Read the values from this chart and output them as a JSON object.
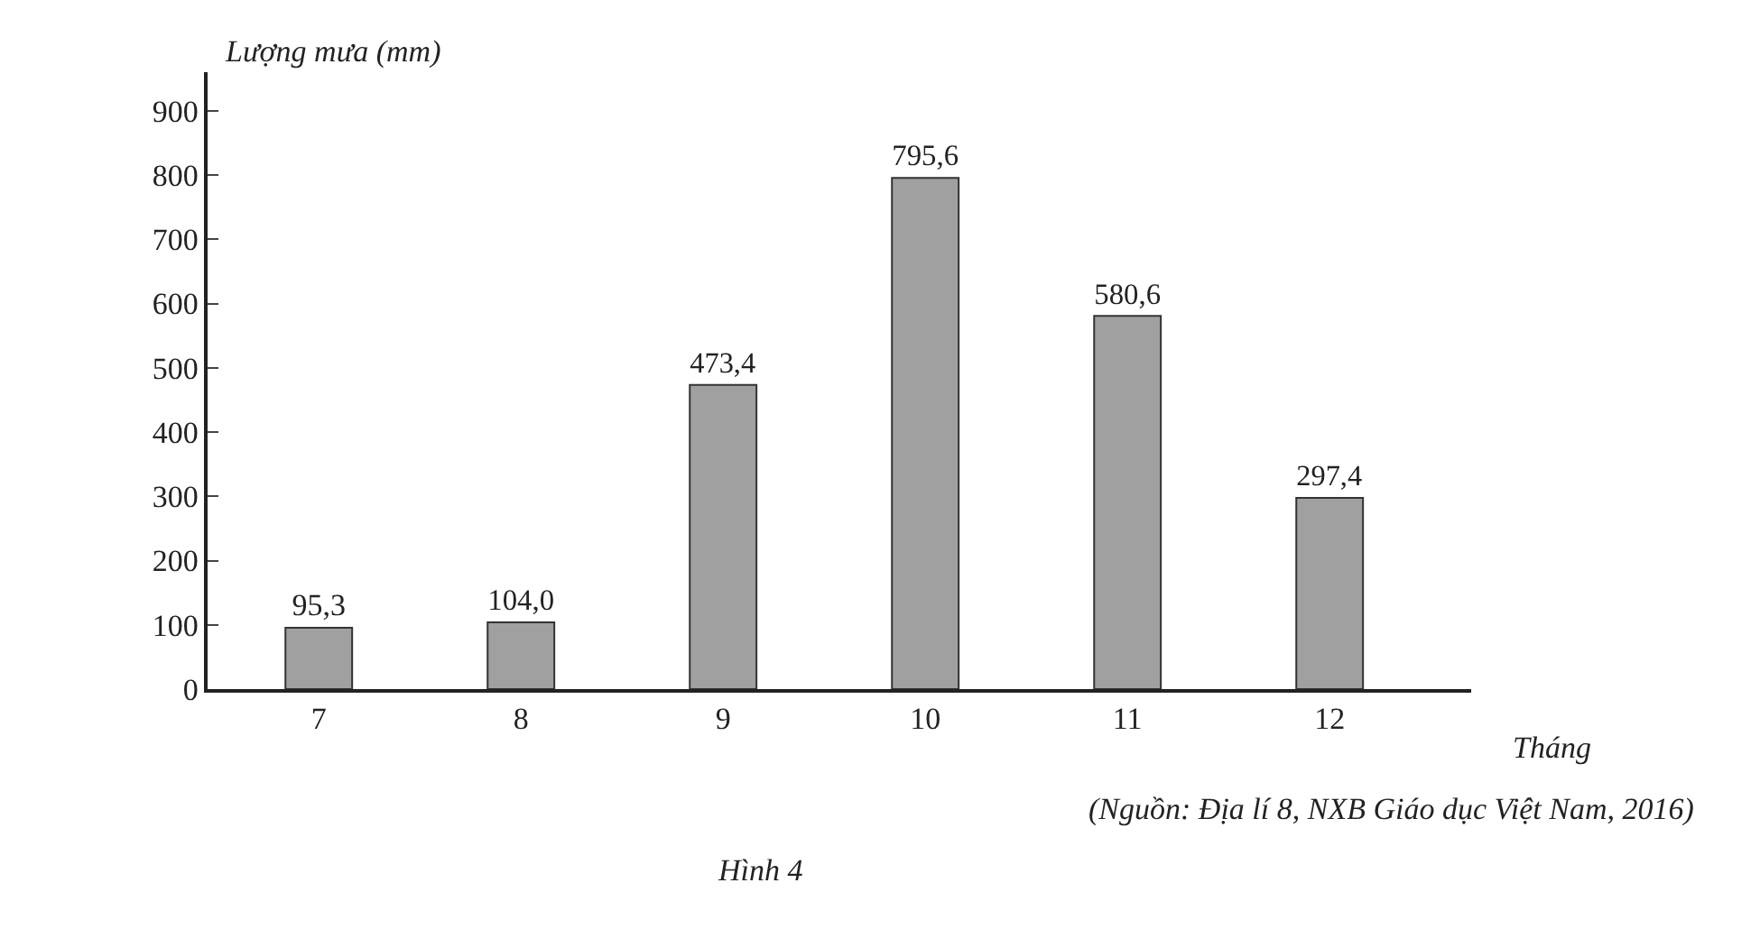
{
  "chart_data": {
    "type": "bar",
    "ylabel": "Lượng mưa (mm)",
    "xlabel": "Tháng",
    "categories": [
      "7",
      "8",
      "9",
      "10",
      "11",
      "12"
    ],
    "values": [
      95.3,
      104.0,
      473.4,
      795.6,
      580.6,
      297.4
    ],
    "value_labels": [
      "95,3",
      "104,0",
      "473,4",
      "795,6",
      "580,6",
      "297,4"
    ],
    "color": "#a0a0a0",
    "ylim": [
      0,
      960
    ],
    "yticks": [
      0,
      100,
      200,
      300,
      400,
      500,
      600,
      700,
      800,
      900
    ],
    "annotations": [
      "(Nguồn: Địa lí 8, NXB Giáo dục Việt Nam, 2016)",
      "Hình 4"
    ]
  }
}
